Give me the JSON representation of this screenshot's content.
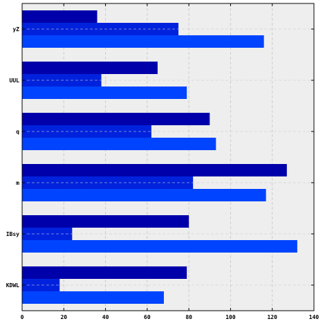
{
  "chart_data": {
    "type": "bar",
    "orientation": "horizontal",
    "categories": [
      "yZ",
      "UUL",
      "q",
      "m",
      "IBsy",
      "KDWL"
    ],
    "series": [
      {
        "values": [
          36,
          65,
          90,
          127,
          80,
          79
        ],
        "color": "#0000aa"
      },
      {
        "values": [
          75,
          38,
          62,
          82,
          24,
          18
        ],
        "color": "#0022dd"
      },
      {
        "values": [
          116,
          79,
          93,
          117,
          132,
          68
        ],
        "color": "#0044ff"
      }
    ],
    "xlim": [
      0,
      140
    ],
    "xticks": [
      "0",
      "20",
      "40",
      "60",
      "80",
      "100",
      "120",
      "140"
    ],
    "grid": true,
    "plot_background": "#eeeeee"
  }
}
